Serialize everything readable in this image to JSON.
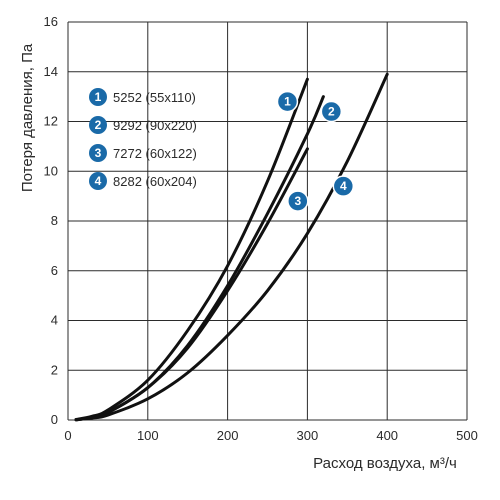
{
  "chart_data": {
    "type": "line",
    "xlabel": "Расход воздуха, м³/ч",
    "ylabel": "Потеря давления, Па",
    "xlim": [
      0,
      500
    ],
    "ylim": [
      0,
      16
    ],
    "x_ticks": [
      "0",
      "100",
      "200",
      "300",
      "400",
      "500"
    ],
    "y_ticks": [
      "0",
      "2",
      "4",
      "6",
      "8",
      "10",
      "12",
      "14",
      "16"
    ],
    "grid": true,
    "legend_placement": "top-left",
    "accent_color": "#1a6aa8",
    "line_color": "#111111",
    "series": [
      {
        "marker": "1",
        "name": "5252 (55x110)",
        "x": [
          10,
          30,
          50,
          100,
          150,
          200,
          250,
          300
        ],
        "y": [
          0.02,
          0.15,
          0.4,
          1.6,
          3.6,
          6.2,
          9.6,
          13.7
        ]
      },
      {
        "marker": "2",
        "name": "9292 (90x220)",
        "x": [
          10,
          30,
          50,
          100,
          150,
          200,
          250,
          300,
          320
        ],
        "y": [
          0.01,
          0.1,
          0.3,
          1.3,
          3.0,
          5.4,
          8.3,
          11.5,
          13.0
        ]
      },
      {
        "marker": "3",
        "name": "7272 (60x122)",
        "x": [
          10,
          30,
          50,
          100,
          150,
          200,
          250,
          300
        ],
        "y": [
          0.01,
          0.1,
          0.3,
          1.3,
          2.9,
          5.2,
          7.9,
          10.9
        ]
      },
      {
        "marker": "4",
        "name": "8282 (60x204)",
        "x": [
          10,
          30,
          50,
          100,
          150,
          200,
          250,
          300,
          350,
          400
        ],
        "y": [
          0.01,
          0.08,
          0.2,
          0.85,
          1.9,
          3.4,
          5.2,
          7.5,
          10.4,
          13.9
        ]
      }
    ]
  }
}
